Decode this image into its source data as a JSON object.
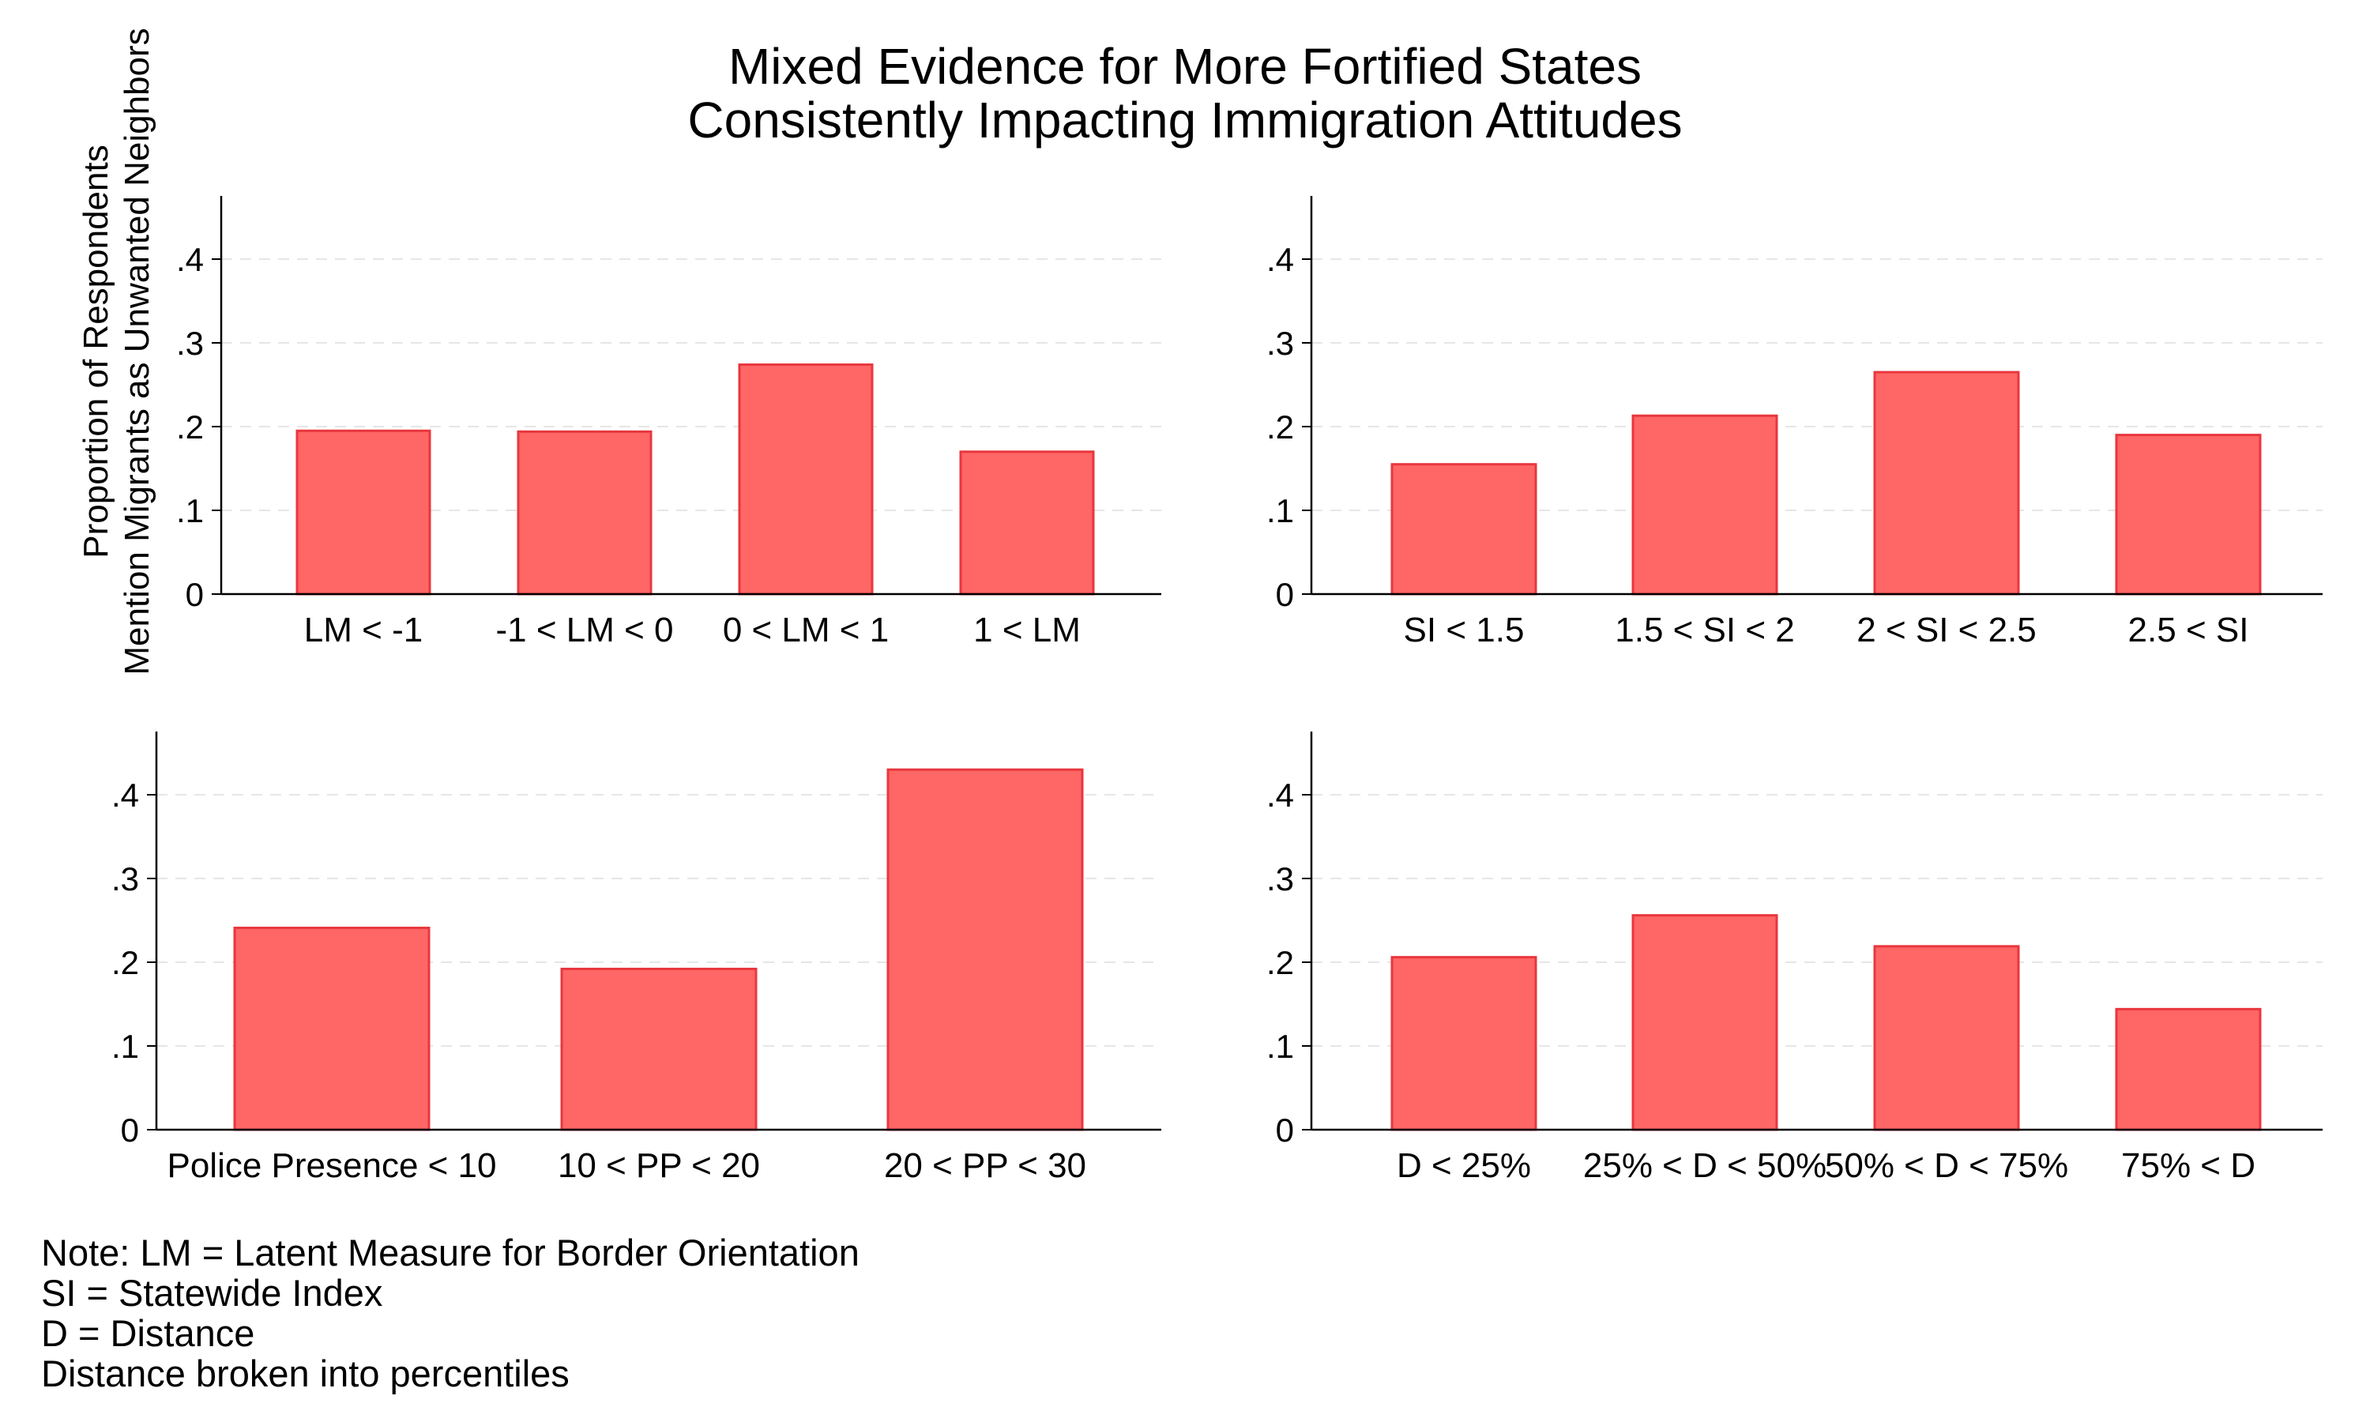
{
  "title": {
    "line1": "Mixed Evidence for More Fortified States",
    "line2": "Consistently Impacting Immigration Attitudes"
  },
  "ylabel": {
    "line1": "Proportion of Respondents",
    "line2": "Mention Migrants as Unwanted Neighbors"
  },
  "notes": {
    "line1": "Note: LM = Latent Measure for Border Orientation",
    "line2": "SI = Statewide Index",
    "line3": "D = Distance",
    "line4": "Distance broken into percentiles"
  },
  "colors": {
    "bar_fill": "#ff6666",
    "bar_stroke": "#e8373d",
    "grid": "#e6e6e6",
    "axis": "#000000"
  },
  "chart_data": [
    {
      "type": "bar",
      "categories": [
        "LM < -1",
        "-1 < LM < 0",
        "0 < LM < 1",
        "1 < LM"
      ],
      "values": [
        0.195,
        0.194,
        0.274,
        0.17
      ],
      "ylim": [
        0,
        0.4
      ],
      "yticks": [
        0,
        0.1,
        0.2,
        0.3,
        0.4
      ],
      "ytick_labels": [
        "0",
        ".1",
        ".2",
        ".3",
        ".4"
      ],
      "grid": true
    },
    {
      "type": "bar",
      "categories": [
        "SI < 1.5",
        "1.5 < SI < 2",
        "2 < SI < 2.5",
        "2.5 < SI"
      ],
      "values": [
        0.155,
        0.213,
        0.265,
        0.19
      ],
      "ylim": [
        0,
        0.4
      ],
      "yticks": [
        0,
        0.1,
        0.2,
        0.3,
        0.4
      ],
      "ytick_labels": [
        "0",
        ".1",
        ".2",
        ".3",
        ".4"
      ],
      "grid": true
    },
    {
      "type": "bar",
      "categories": [
        "Police Presence < 10",
        "10 < PP < 20",
        "20 < PP < 30"
      ],
      "values": [
        0.241,
        0.192,
        0.43
      ],
      "ylim": [
        0,
        0.4
      ],
      "yticks": [
        0,
        0.1,
        0.2,
        0.3,
        0.4
      ],
      "ytick_labels": [
        "0",
        ".1",
        ".2",
        ".3",
        ".4"
      ],
      "grid": true
    },
    {
      "type": "bar",
      "categories": [
        "D < 25%",
        "25% < D < 50%",
        "50% < D < 75%",
        "75% < D"
      ],
      "values": [
        0.206,
        0.256,
        0.219,
        0.144
      ],
      "ylim": [
        0,
        0.4
      ],
      "yticks": [
        0,
        0.1,
        0.2,
        0.3,
        0.4
      ],
      "ytick_labels": [
        "0",
        ".1",
        ".2",
        ".3",
        ".4"
      ],
      "grid": true
    }
  ]
}
